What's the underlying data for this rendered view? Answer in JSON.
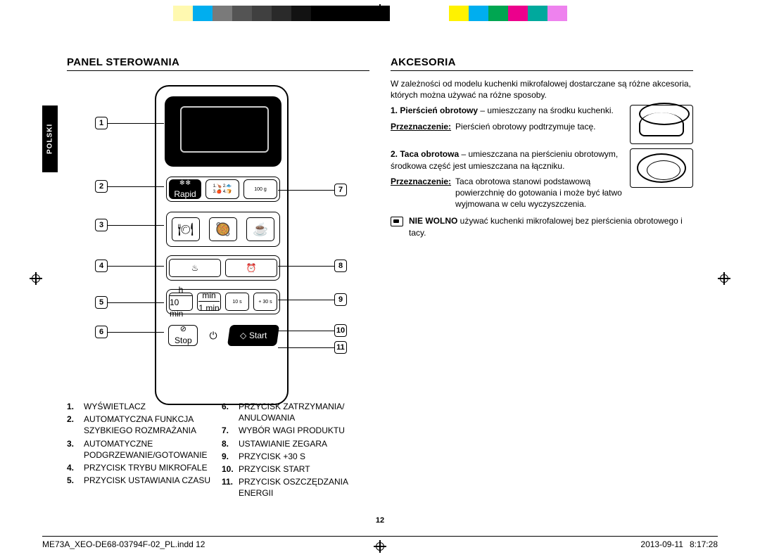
{
  "colorbar": [
    "#ffffff",
    "#fff9b0",
    "#00aeef",
    "#7a7a7a",
    "#545454",
    "#404040",
    "#2a2a2a",
    "#121212",
    "#000000",
    "#000000",
    "#000000",
    "#000000",
    "#ffffff",
    "#ffffff",
    "#ffffff",
    "#fff200",
    "#00aeef",
    "#00a651",
    "#ec008c",
    "#00a99d",
    "#ee82ee",
    "#ffffff",
    "#ffffff"
  ],
  "side_tab": "POLSKI",
  "left": {
    "heading": "PANEL STEROWANIA",
    "callouts_left": [
      "1",
      "2",
      "3",
      "4",
      "5",
      "6"
    ],
    "callouts_right": [
      "7",
      "8",
      "9",
      "10",
      "11"
    ],
    "panel_labels": {
      "rapid": "Rapid",
      "g": "100 g",
      "row4_left": "♨",
      "row4_right": "⏰",
      "row5_a_top": "h",
      "row5_a_bot": "10 min",
      "row5_b_top": "min",
      "row5_b_bot": "1 min",
      "row5_c": "10 s",
      "row5_d": "+ 30 s",
      "stop": "Stop",
      "start": "Start",
      "d100": ""
    },
    "legend_left": [
      {
        "n": "1.",
        "t": "WYŚWIETLACZ"
      },
      {
        "n": "2.",
        "t": "AUTOMATYCZNA FUNKCJA SZYBKIEGO ROZMRAŻANIA"
      },
      {
        "n": "3.",
        "t": "AUTOMATYCZNE PODGRZEWANIE/GOTOWANIE"
      },
      {
        "n": "4.",
        "t": "PRZYCISK TRYBU MIKROFALE"
      },
      {
        "n": "5.",
        "t": "PRZYCISK USTAWIANIA CZASU"
      }
    ],
    "legend_right": [
      {
        "n": "6.",
        "t": "PRZYCISK ZATRZYMANIA/ ANULOWANIA"
      },
      {
        "n": "7.",
        "t": "WYBÓR WAGI PRODUKTU"
      },
      {
        "n": "8.",
        "t": "USTAWIANIE ZEGARA"
      },
      {
        "n": "9.",
        "t": "PRZYCISK +30 S"
      },
      {
        "n": "10.",
        "t": "PRZYCISK START"
      },
      {
        "n": "11.",
        "t": "PRZYCISK OSZCZĘDZANIA ENERGII"
      }
    ]
  },
  "right": {
    "heading": "AKCESORIA",
    "intro": "W zależności od modelu kuchenki mikrofalowej dostarczane są różne akcesoria, których można używać na różne sposoby.",
    "items": [
      {
        "n": "1.",
        "title": "Pierścień obrotowy",
        "desc": " – umieszczany na środku kuchenki.",
        "purpose": "Pierścień obrotowy podtrzymuje tacę."
      },
      {
        "n": "2.",
        "title": "Taca obrotowa",
        "desc": " – umieszczana na pierścieniu obrotowym, środkowa część jest umieszczana na łączniku.",
        "purpose": "Taca obrotowa stanowi podstawową powierzchnię do gotowania i może być łatwo wyjmowana w celu wyczyszczenia."
      }
    ],
    "purpose_label": "Przeznaczenie:",
    "warn_bold": "NIE WOLNO",
    "warn_rest": " używać kuchenki mikrofalowej bez pierścienia obrotowego i tacy."
  },
  "page_number": "12",
  "footer_left": "ME73A_XEO-DE68-03794F-02_PL.indd   12",
  "footer_right": "2013-09-11     8:17:28"
}
